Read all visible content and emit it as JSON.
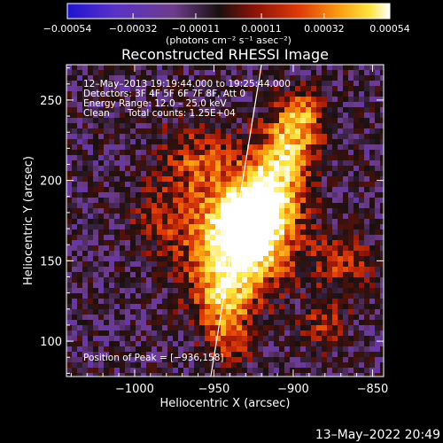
{
  "chart_data": {
    "type": "heatmap",
    "title": "Reconstructed RHESSI Image",
    "xlabel": "Heliocentric X (arcsec)",
    "ylabel": "Heliocentric Y (arcsec)",
    "xlim": [
      -1043,
      -843
    ],
    "ylim": [
      78,
      272
    ],
    "x_ticks": [
      -1000,
      -950,
      -900,
      -850
    ],
    "x_tick_labels": [
      "−1000",
      "−950",
      "−900",
      "−850"
    ],
    "y_ticks": [
      100,
      150,
      200,
      250
    ],
    "y_tick_labels": [
      "100",
      "150",
      "200",
      "250"
    ],
    "colorbar": {
      "range": [
        -0.00054,
        0.00054
      ],
      "ticks": [
        -0.00054,
        -0.00032,
        -0.00011,
        0.00011,
        0.00032,
        0.00054
      ],
      "tick_labels": [
        "−0.00054",
        "−0.00032",
        "−0.00011",
        "0.00011",
        "0.00032",
        "0.00054"
      ],
      "label": "(photons cm⁻² s⁻¹ asec⁻²)"
    },
    "annotations": {
      "time_range": "12–May–2013 19:19:44.000 to 19:25:44.000",
      "detectors": "Detectors: 3F 4F 5F 6F 7F 8F, Att 0",
      "energy_range": "Energy Range: 12.0 – 25.0 keV",
      "clean_counts": "Clean      Total counts: 1.25E+04",
      "peak": "Position of Peak = [−936,158]"
    },
    "peak_position": [
      -936,
      158
    ],
    "limb_line": [
      [
        -952,
        78
      ],
      [
        -920,
        272
      ]
    ],
    "grid": false
  },
  "footer": {
    "timestamp": "13–May–2022 20:49"
  },
  "colors": {
    "background": "#000000",
    "text": "#ffffff",
    "cmap": [
      "#1e14d2",
      "#5a32c8",
      "#6e3c8c",
      "#181010",
      "#8c1208",
      "#e03a08",
      "#fa9a10",
      "#ffe640",
      "#ffffff"
    ]
  }
}
